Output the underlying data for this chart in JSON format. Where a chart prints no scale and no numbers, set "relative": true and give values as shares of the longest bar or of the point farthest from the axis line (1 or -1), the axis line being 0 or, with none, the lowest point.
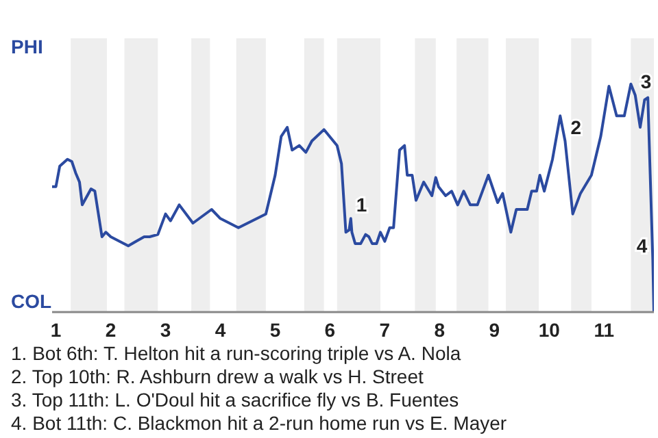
{
  "chart_data": {
    "type": "line",
    "relative": true,
    "x": [
      0.93,
      1,
      1.07,
      1.21,
      1.29,
      1.36,
      1.43,
      1.48,
      1.64,
      1.71,
      1.84,
      1.91,
      2,
      2.32,
      2.46,
      2.61,
      2.71,
      2.86,
      3,
      3.09,
      3.25,
      3.5,
      3.84,
      4,
      4.33,
      4.83,
      5,
      5.11,
      5.22,
      5.31,
      5.44,
      5.56,
      5.67,
      5.89,
      6.13,
      6.21,
      6.29,
      6.35,
      6.38,
      6.4,
      6.46,
      6.56,
      6.65,
      6.71,
      6.77,
      6.85,
      6.92,
      7,
      7.09,
      7.16,
      7.27,
      7.36,
      7.41,
      7.5,
      7.57,
      7.71,
      7.86,
      7.93,
      7.98,
      8.11,
      8.22,
      8.33,
      8.44,
      8.56,
      8.69,
      8.89,
      9.06,
      9.15,
      9.3,
      9.4,
      9.6,
      9.68,
      9.77,
      9.83,
      9.91,
      10.06,
      10.2,
      10.29,
      10.43,
      10.57,
      10.77,
      10.94,
      11.09,
      11.23,
      11.37,
      11.49,
      11.57,
      11.66,
      11.74,
      11.8,
      11.89,
      11.91
    ],
    "series": [
      {
        "color": "#2b4aa0",
        "values": [
          0.55,
          0.55,
          0.64,
          0.67,
          0.66,
          0.61,
          0.57,
          0.47,
          0.54,
          0.53,
          0.33,
          0.35,
          0.33,
          0.29,
          0.31,
          0.33,
          0.33,
          0.34,
          0.43,
          0.4,
          0.47,
          0.39,
          0.45,
          0.41,
          0.37,
          0.43,
          0.6,
          0.77,
          0.81,
          0.71,
          0.73,
          0.7,
          0.75,
          0.8,
          0.73,
          0.65,
          0.35,
          0.36,
          0.41,
          0.35,
          0.3,
          0.3,
          0.34,
          0.33,
          0.3,
          0.3,
          0.35,
          0.31,
          0.37,
          0.37,
          0.71,
          0.73,
          0.6,
          0.6,
          0.49,
          0.57,
          0.51,
          0.59,
          0.55,
          0.51,
          0.53,
          0.47,
          0.53,
          0.47,
          0.47,
          0.6,
          0.48,
          0.52,
          0.35,
          0.45,
          0.45,
          0.53,
          0.53,
          0.6,
          0.53,
          0.67,
          0.86,
          0.75,
          0.43,
          0.52,
          0.6,
          0.77,
          0.99,
          0.86,
          0.86,
          1,
          0.95,
          0.81,
          0.93,
          0.94,
          0.23,
          0
        ]
      }
    ],
    "xlim": [
      0.93,
      11.91
    ],
    "xticks": [
      1,
      2,
      3,
      4,
      5,
      6,
      7,
      8,
      9,
      10,
      11
    ],
    "marker": "none",
    "line_style": "solid",
    "bands": [
      {
        "axis": "x",
        "from": 1.27,
        "to": 1.93,
        "color": "#eeeeee"
      },
      {
        "axis": "x",
        "from": 2.25,
        "to": 2.86,
        "color": "#eeeeee"
      },
      {
        "axis": "x",
        "from": 3.47,
        "to": 3.81,
        "color": "#eeeeee"
      },
      {
        "axis": "x",
        "from": 4.29,
        "to": 4.83,
        "color": "#eeeeee"
      },
      {
        "axis": "x",
        "from": 5.53,
        "to": 5.89,
        "color": "#eeeeee"
      },
      {
        "axis": "x",
        "from": 6.13,
        "to": 6.92,
        "color": "#eeeeee"
      },
      {
        "axis": "x",
        "from": 7.55,
        "to": 7.93,
        "color": "#eeeeee"
      },
      {
        "axis": "x",
        "from": 8.31,
        "to": 8.89,
        "color": "#eeeeee"
      },
      {
        "axis": "x",
        "from": 9.21,
        "to": 9.81,
        "color": "#eeeeee"
      },
      {
        "axis": "x",
        "from": 10.4,
        "to": 10.77,
        "color": "#eeeeee"
      },
      {
        "axis": "x",
        "from": 11.49,
        "to": 11.91,
        "color": "#eeeeee"
      }
    ],
    "annotations": [
      "PHI",
      "COL",
      {
        "text": "1",
        "x": 6.38,
        "y": 0.41
      },
      {
        "text": "2",
        "x": 10.29,
        "y": 0.75
      },
      {
        "text": "3",
        "x": 11.57,
        "y": 0.95
      },
      {
        "text": "4",
        "x": 11.89,
        "y": 0.23
      },
      "1. Bot 6th: T. Helton hit a run-scoring triple vs A. Nola",
      "2. Top 10th: R. Ashburn drew a walk vs H. Street",
      "3. Top 11th: L. O'Doul hit a sacrifice fly vs B. Fuentes",
      "4. Bot 11th: C. Blackmon hit a 2-run home run vs E. Mayer"
    ]
  }
}
